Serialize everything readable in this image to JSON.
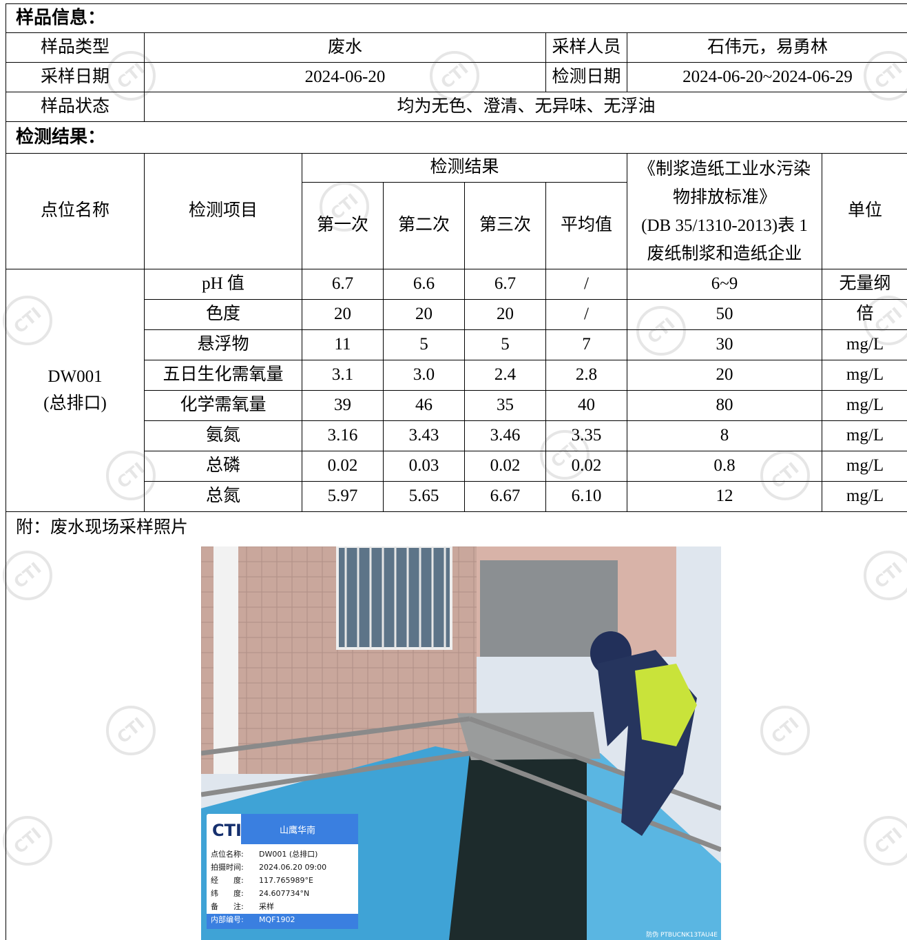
{
  "sample_info": {
    "heading": "样品信息：",
    "rows": [
      [
        "样品类型",
        "废水",
        "采样人员",
        "石伟元，易勇林"
      ],
      [
        "采样日期",
        "2024-06-20",
        "检测日期",
        "2024-06-20~2024-06-29"
      ],
      [
        "样品状态",
        "均为无色、澄清、无异味、无浮油"
      ]
    ]
  },
  "results": {
    "heading": "检测结果：",
    "header": {
      "site": "点位名称",
      "item": "检测项目",
      "group": "检测结果",
      "runs": [
        "第一次",
        "第二次",
        "第三次",
        "平均值"
      ],
      "standard": [
        "《制浆造纸工业水污染",
        "物排放标准》",
        "(DB 35/1310-2013)表 1",
        "废纸制浆和造纸企业"
      ],
      "unit": "单位"
    },
    "site": [
      "DW001",
      "(总排口)"
    ],
    "rows": [
      [
        "pH 值",
        "6.7",
        "6.6",
        "6.7",
        "/",
        "6~9",
        "无量纲"
      ],
      [
        "色度",
        "20",
        "20",
        "20",
        "/",
        "50",
        "倍"
      ],
      [
        "悬浮物",
        "11",
        "5",
        "5",
        "7",
        "30",
        "mg/L"
      ],
      [
        "五日生化需氧量",
        "3.1",
        "3.0",
        "2.4",
        "2.8",
        "20",
        "mg/L"
      ],
      [
        "化学需氧量",
        "39",
        "46",
        "35",
        "40",
        "80",
        "mg/L"
      ],
      [
        "氨氮",
        "3.16",
        "3.43",
        "3.46",
        "3.35",
        "8",
        "mg/L"
      ],
      [
        "总磷",
        "0.02",
        "0.03",
        "0.02",
        "0.02",
        "0.8",
        "mg/L"
      ],
      [
        "总氮",
        "5.97",
        "5.65",
        "6.67",
        "6.10",
        "12",
        "mg/L"
      ]
    ]
  },
  "appendix": {
    "note": "附：废水现场采样照片",
    "photo": {
      "brand": "CTI",
      "company": "山鹰华南",
      "fields": [
        [
          "点位名称:",
          "DW001 (总排口)"
        ],
        [
          "拍摄时间:",
          "2024.06.20 09:00"
        ],
        [
          "经　　度:",
          "117.765989°E"
        ],
        [
          "纬　　度:",
          "24.607734°N"
        ],
        [
          "备　　注:",
          "采样"
        ],
        [
          "内部编号:",
          "MQF1902"
        ]
      ],
      "code": "防伪 PTBUCNK13TAU4E"
    }
  },
  "watermark": "CTI"
}
